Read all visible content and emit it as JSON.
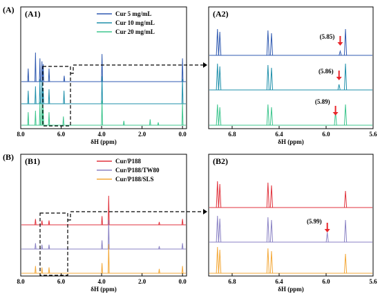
{
  "figure": {
    "panel_A": "(A)",
    "panel_B": "(B)",
    "x_axis_label": "δH (ppm)"
  },
  "chart_data": [
    {
      "id": "A1",
      "type": "line",
      "label": "(A1)",
      "xlabel": "δH (ppm)",
      "xlim": [
        8.0,
        -0.2
      ],
      "xticks": [
        "8.0",
        "6.0",
        "4.0",
        "2.0",
        "0.0"
      ],
      "series": [
        {
          "name": "Cur 5 mg/mL",
          "color": "#2f59b0",
          "peaks": [
            [
              7.63,
              0.45
            ],
            [
              7.27,
              1.0
            ],
            [
              7.05,
              0.8
            ],
            [
              6.95,
              0.7
            ],
            [
              6.89,
              0.6
            ],
            [
              6.6,
              0.45
            ],
            [
              5.85,
              0.2
            ],
            [
              3.98,
              0.95
            ],
            [
              0.0,
              0.8
            ]
          ]
        },
        {
          "name": "Cur 10 mg/mL",
          "color": "#1e8faa",
          "peaks": [
            [
              7.63,
              0.45
            ],
            [
              7.27,
              0.6
            ],
            [
              7.05,
              0.85
            ],
            [
              6.95,
              0.8
            ],
            [
              6.89,
              0.55
            ],
            [
              6.6,
              0.5
            ],
            [
              5.86,
              0.45
            ],
            [
              3.98,
              0.95
            ],
            [
              0.0,
              0.85
            ]
          ]
        },
        {
          "name": "Cur 20 mg/mL",
          "color": "#3cc58d",
          "peaks": [
            [
              7.63,
              0.45
            ],
            [
              7.27,
              0.5
            ],
            [
              7.05,
              0.8
            ],
            [
              6.95,
              0.75
            ],
            [
              6.89,
              0.6
            ],
            [
              6.6,
              0.45
            ],
            [
              5.89,
              0.3
            ],
            [
              3.98,
              0.85
            ],
            [
              2.9,
              0.15
            ],
            [
              1.6,
              0.2
            ],
            [
              1.2,
              0.1
            ],
            [
              0.0,
              0.75
            ]
          ]
        }
      ]
    },
    {
      "id": "A2",
      "type": "line",
      "label": "(A2)",
      "xlabel": "δH (ppm)",
      "xlim": [
        7.0,
        5.6
      ],
      "xticks": [
        "6.8",
        "6.4",
        "6.0",
        "5.6"
      ],
      "annotations": [
        "(5.85)",
        "(5.86)",
        "(5.89)"
      ],
      "series": [
        {
          "name": "Cur 5 mg/mL",
          "color": "#2f59b0",
          "peaks": [
            [
              6.925,
              0.95
            ],
            [
              6.905,
              0.85
            ],
            [
              6.495,
              0.9
            ],
            [
              6.465,
              0.8
            ],
            [
              5.88,
              0.15
            ],
            [
              5.835,
              0.95
            ]
          ]
        },
        {
          "name": "Cur 10 mg/mL",
          "color": "#1e8faa",
          "peaks": [
            [
              6.925,
              0.95
            ],
            [
              6.905,
              0.85
            ],
            [
              6.495,
              0.9
            ],
            [
              6.465,
              0.8
            ],
            [
              5.89,
              0.2
            ],
            [
              5.835,
              0.95
            ]
          ]
        },
        {
          "name": "Cur 20 mg/mL",
          "color": "#3cc58d",
          "peaks": [
            [
              6.925,
              0.75
            ],
            [
              6.905,
              0.65
            ],
            [
              6.495,
              0.75
            ],
            [
              6.465,
              0.65
            ],
            [
              5.92,
              0.5
            ],
            [
              5.835,
              0.75
            ]
          ]
        }
      ]
    },
    {
      "id": "B1",
      "type": "line",
      "label": "(B1)",
      "xlabel": "δH (ppm)",
      "xlim": [
        8.0,
        -0.2
      ],
      "xticks": [
        "8.0",
        "6.0",
        "4.0",
        "2.0",
        "0.0"
      ],
      "series": [
        {
          "name": "Cur/P188",
          "color": "#e0323c",
          "peaks": [
            [
              7.27,
              0.2
            ],
            [
              6.95,
              0.15
            ],
            [
              6.6,
              0.15
            ],
            [
              3.98,
              0.3
            ],
            [
              3.65,
              1.0
            ],
            [
              1.15,
              0.1
            ],
            [
              0.0,
              0.2
            ]
          ]
        },
        {
          "name": "Cur/P188/TW80",
          "color": "#8a82c4",
          "peaks": [
            [
              7.27,
              0.2
            ],
            [
              6.95,
              0.15
            ],
            [
              6.6,
              0.15
            ],
            [
              3.98,
              0.3
            ],
            [
              3.65,
              1.0
            ],
            [
              1.15,
              0.1
            ],
            [
              0.0,
              0.2
            ]
          ]
        },
        {
          "name": "Cur/P188/SLS",
          "color": "#f3a838",
          "peaks": [
            [
              7.27,
              0.25
            ],
            [
              6.95,
              0.2
            ],
            [
              6.6,
              0.2
            ],
            [
              3.98,
              0.35
            ],
            [
              3.65,
              1.0
            ],
            [
              1.15,
              0.15
            ],
            [
              0.0,
              0.25
            ]
          ]
        }
      ]
    },
    {
      "id": "B2",
      "type": "line",
      "label": "(B2)",
      "xlabel": "δH (ppm)",
      "xlim": [
        7.0,
        5.6
      ],
      "xticks": [
        "6.8",
        "6.4",
        "6.0",
        "5.6"
      ],
      "annotations": [
        "(5.99)"
      ],
      "series": [
        {
          "name": "Cur/P188",
          "color": "#e0323c",
          "peaks": [
            [
              6.925,
              0.95
            ],
            [
              6.905,
              0.85
            ],
            [
              6.495,
              0.9
            ],
            [
              6.465,
              0.8
            ],
            [
              5.835,
              0.6
            ]
          ]
        },
        {
          "name": "Cur/P188/TW80",
          "color": "#8a82c4",
          "peaks": [
            [
              6.925,
              0.95
            ],
            [
              6.905,
              0.85
            ],
            [
              6.495,
              0.9
            ],
            [
              6.465,
              0.8
            ],
            [
              5.99,
              0.35
            ],
            [
              5.835,
              0.8
            ]
          ]
        },
        {
          "name": "Cur/P188/SLS",
          "color": "#f3a838",
          "peaks": [
            [
              6.925,
              0.95
            ],
            [
              6.905,
              0.85
            ],
            [
              6.495,
              0.9
            ],
            [
              6.465,
              0.8
            ],
            [
              5.835,
              0.7
            ]
          ]
        }
      ]
    }
  ]
}
